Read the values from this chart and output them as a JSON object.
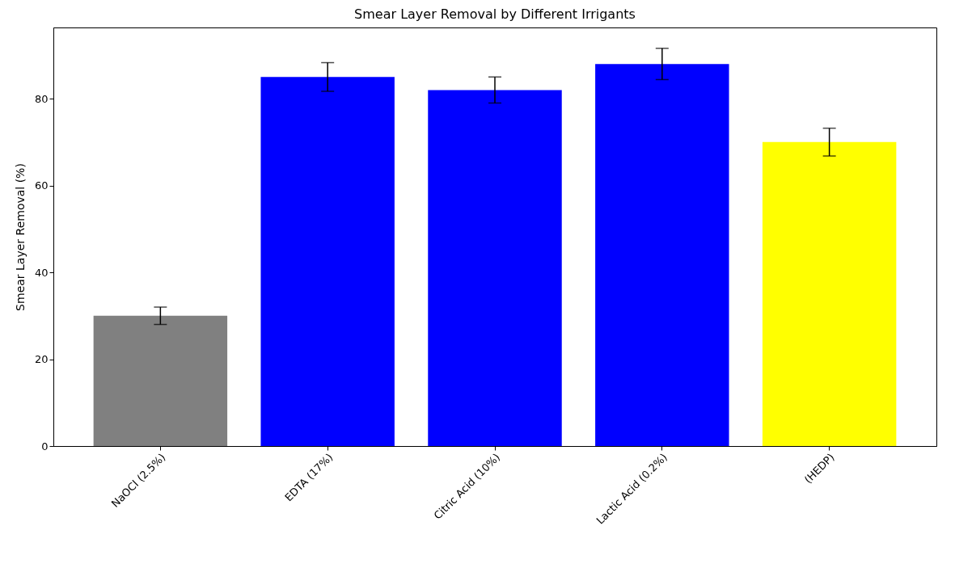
{
  "chart_data": {
    "type": "bar",
    "title": "Smear Layer Removal by Different Irrigants",
    "ylabel": "Smear Layer Removal (%)",
    "categories": [
      "NaOCl (2.5%)",
      "EDTA (17%)",
      "Citric Acid (10%)",
      "Lactic Acid (0.2%)",
      "(HEDP)"
    ],
    "values": [
      30,
      85,
      82,
      88,
      70
    ],
    "errors": [
      2,
      3.3,
      3,
      3.6,
      3.2
    ],
    "colors": [
      "#808080",
      "#0000ff",
      "#0000ff",
      "#0000ff",
      "#ffff00"
    ],
    "ylim": [
      0,
      96.4
    ],
    "yticks": [
      0,
      20,
      40,
      60,
      80
    ],
    "grid": false
  }
}
